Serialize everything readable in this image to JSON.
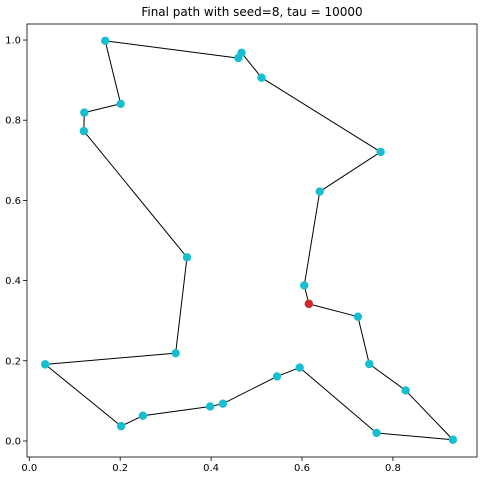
{
  "chart_data": {
    "type": "scatter",
    "title": "Final path with seed=8, tau = 10000",
    "xlabel": "",
    "ylabel": "",
    "xlim": [
      -0.005,
      0.985
    ],
    "ylim": [
      -0.04,
      1.04
    ],
    "grid": false,
    "x_ticks": [
      0.0,
      0.2,
      0.4,
      0.6,
      0.8
    ],
    "x_tick_labels": [
      "0.0",
      "0.2",
      "0.4",
      "0.6",
      "0.8"
    ],
    "y_ticks": [
      0.0,
      0.2,
      0.4,
      0.6,
      0.8,
      1.0
    ],
    "y_tick_labels": [
      "0.0",
      "0.2",
      "0.4",
      "0.6",
      "0.8",
      "1.0"
    ],
    "point_color": "#17becf",
    "start_color": "#d62728",
    "line_color": "#000000",
    "start": {
      "x": 0.615,
      "y": 0.342
    },
    "path": [
      {
        "x": 0.615,
        "y": 0.342
      },
      {
        "x": 0.723,
        "y": 0.31
      },
      {
        "x": 0.748,
        "y": 0.192
      },
      {
        "x": 0.828,
        "y": 0.126
      },
      {
        "x": 0.932,
        "y": 0.003
      },
      {
        "x": 0.764,
        "y": 0.02
      },
      {
        "x": 0.595,
        "y": 0.183
      },
      {
        "x": 0.545,
        "y": 0.161
      },
      {
        "x": 0.426,
        "y": 0.093
      },
      {
        "x": 0.398,
        "y": 0.086
      },
      {
        "x": 0.25,
        "y": 0.063
      },
      {
        "x": 0.202,
        "y": 0.037
      },
      {
        "x": 0.035,
        "y": 0.191
      },
      {
        "x": 0.322,
        "y": 0.219
      },
      {
        "x": 0.347,
        "y": 0.458
      },
      {
        "x": 0.12,
        "y": 0.773
      },
      {
        "x": 0.121,
        "y": 0.819
      },
      {
        "x": 0.201,
        "y": 0.841
      },
      {
        "x": 0.167,
        "y": 0.998
      },
      {
        "x": 0.46,
        "y": 0.955
      },
      {
        "x": 0.467,
        "y": 0.968
      },
      {
        "x": 0.511,
        "y": 0.906
      },
      {
        "x": 0.773,
        "y": 0.721
      },
      {
        "x": 0.639,
        "y": 0.622
      },
      {
        "x": 0.605,
        "y": 0.388
      },
      {
        "x": 0.615,
        "y": 0.342
      }
    ]
  }
}
